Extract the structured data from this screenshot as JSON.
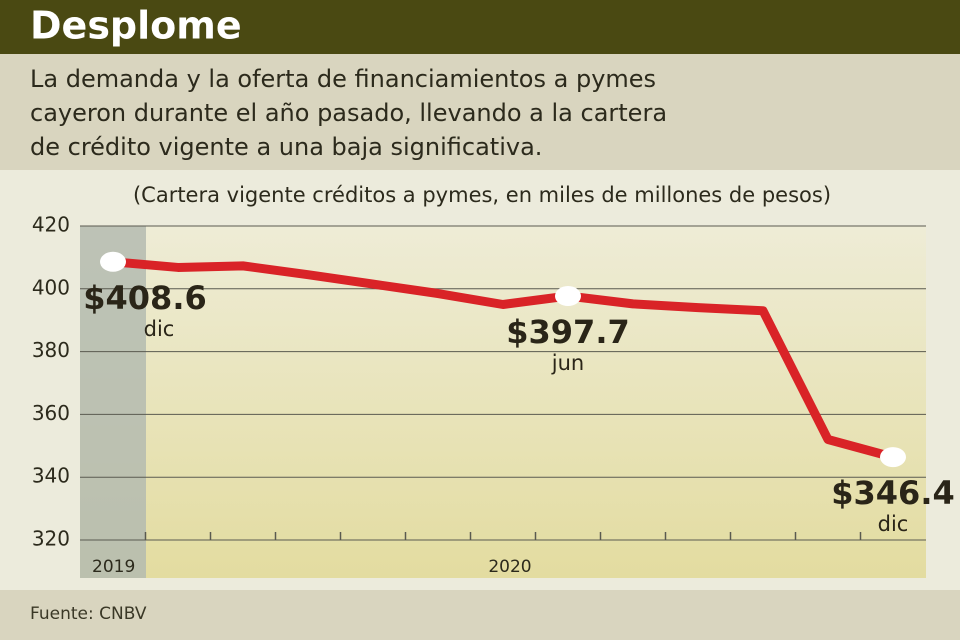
{
  "chart_data": {
    "type": "line",
    "title": "Desplome",
    "subtitle": [
      "La demanda y la oferta de financiamientos a pymes",
      "cayeron durante el año pasado, llevando a la cartera",
      "de crédito vigente a una baja significativa."
    ],
    "axis_title": "(Cartera vigente créditos a pymes, en miles de millones de pesos)",
    "categories": [
      null,
      null,
      null,
      null,
      null,
      null,
      null,
      null,
      null,
      null,
      null,
      null,
      null
    ],
    "periods": [
      "2019",
      "2020"
    ],
    "series": [
      {
        "name": null,
        "color": "#d92327",
        "values": [
          408.6,
          406.8,
          407.3,
          404.5,
          401.5,
          398.5,
          395.0,
          397.7,
          395.2,
          394.0,
          393.0,
          352.0,
          346.4
        ],
        "value_labels": [
          "$408.6",
          null,
          null,
          null,
          null,
          null,
          null,
          "$397.7",
          null,
          null,
          null,
          null,
          "$346.4"
        ],
        "point_notes": [
          "dic",
          null,
          null,
          null,
          null,
          null,
          null,
          "jun",
          null,
          null,
          null,
          null,
          "dic"
        ]
      }
    ],
    "ylim": [
      320,
      420
    ],
    "yticks": [
      320,
      340,
      360,
      380,
      400,
      420
    ],
    "grid": true,
    "source": "Fuente: CNBV"
  }
}
